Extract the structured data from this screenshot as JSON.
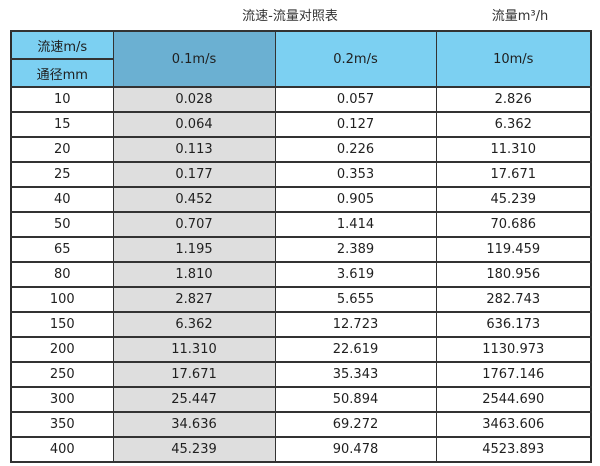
{
  "caption": {
    "title": "流速-流量对照表",
    "unit_label": "流量m³/h"
  },
  "table": {
    "corner": {
      "top_label": "流速m/s",
      "bottom_label": "通径mm"
    },
    "columns": [
      "0.1m/s",
      "0.2m/s",
      "10m/s"
    ],
    "rows": [
      {
        "dn": "10",
        "values": [
          "0.028",
          "0.057",
          "2.826"
        ]
      },
      {
        "dn": "15",
        "values": [
          "0.064",
          "0.127",
          "6.362"
        ]
      },
      {
        "dn": "20",
        "values": [
          "0.113",
          "0.226",
          "11.310"
        ]
      },
      {
        "dn": "25",
        "values": [
          "0.177",
          "0.353",
          "17.671"
        ]
      },
      {
        "dn": "40",
        "values": [
          "0.452",
          "0.905",
          "45.239"
        ]
      },
      {
        "dn": "50",
        "values": [
          "0.707",
          "1.414",
          "70.686"
        ]
      },
      {
        "dn": "65",
        "values": [
          "1.195",
          "2.389",
          "119.459"
        ]
      },
      {
        "dn": "80",
        "values": [
          "1.810",
          "3.619",
          "180.956"
        ]
      },
      {
        "dn": "100",
        "values": [
          "2.827",
          "5.655",
          "282.743"
        ]
      },
      {
        "dn": "150",
        "values": [
          "6.362",
          "12.723",
          "636.173"
        ]
      },
      {
        "dn": "200",
        "values": [
          "11.310",
          "22.619",
          "1130.973"
        ]
      },
      {
        "dn": "250",
        "values": [
          "17.671",
          "35.343",
          "1767.146"
        ]
      },
      {
        "dn": "300",
        "values": [
          "25.447",
          "50.894",
          "2544.690"
        ]
      },
      {
        "dn": "350",
        "values": [
          "34.636",
          "69.272",
          "3463.606"
        ]
      },
      {
        "dn": "400",
        "values": [
          "45.239",
          "90.478",
          "4523.893"
        ]
      }
    ]
  },
  "colors": {
    "header_light_blue": "#7cd0f2",
    "header_dark_blue": "#6bb0d2",
    "shaded_column_gray": "#dedede",
    "border_dark": "#333333"
  },
  "chart_data": {
    "type": "table",
    "title": "流速-流量对照表",
    "unit": "流量m³/h",
    "row_header_label": "通径mm",
    "column_header_label": "流速m/s",
    "columns": [
      "0.1m/s",
      "0.2m/s",
      "10m/s"
    ],
    "diameters_mm": [
      10,
      15,
      20,
      25,
      40,
      50,
      65,
      80,
      100,
      150,
      200,
      250,
      300,
      350,
      400
    ],
    "series": [
      {
        "name": "0.1m/s",
        "values": [
          0.028,
          0.064,
          0.113,
          0.177,
          0.452,
          0.707,
          1.195,
          1.81,
          2.827,
          6.362,
          11.31,
          17.671,
          25.447,
          34.636,
          45.239
        ]
      },
      {
        "name": "0.2m/s",
        "values": [
          0.057,
          0.127,
          0.226,
          0.353,
          0.905,
          1.414,
          2.389,
          3.619,
          5.655,
          12.723,
          22.619,
          35.343,
          50.894,
          69.272,
          90.478
        ]
      },
      {
        "name": "10m/s",
        "values": [
          2.826,
          6.362,
          11.31,
          17.671,
          45.239,
          70.686,
          119.459,
          180.956,
          282.743,
          636.173,
          1130.973,
          1767.146,
          2544.69,
          3463.606,
          4523.893
        ]
      }
    ]
  }
}
